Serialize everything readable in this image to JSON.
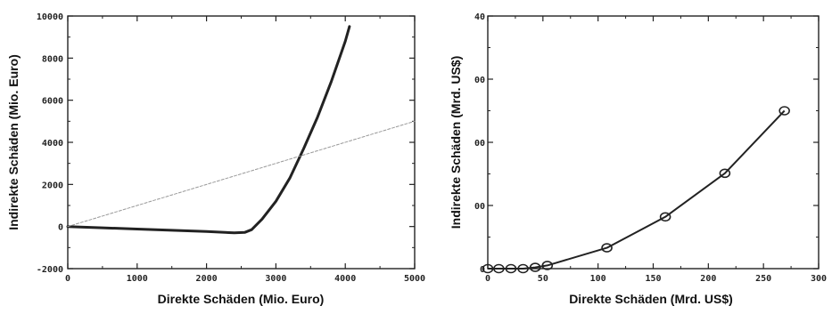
{
  "chart_data": [
    {
      "type": "line",
      "xlabel": "Direkte Schäden (Mio. Euro)",
      "ylabel": "Indirekte Schäden (Mio. Euro)",
      "xlim": [
        0,
        5000
      ],
      "ylim": [
        -2000,
        10000
      ],
      "xticks": [
        "0",
        "1000",
        "2000",
        "3000",
        "4000",
        "5000"
      ],
      "yticks": [
        "-2000",
        "0",
        "2000",
        "4000",
        "6000",
        "8000",
        "10000"
      ],
      "series": [
        {
          "style": "solid-thick",
          "color": "#222222",
          "x": [
            0,
            500,
            1000,
            1500,
            2000,
            2400,
            2550,
            2650,
            2800,
            3000,
            3200,
            3400,
            3600,
            3800,
            4000,
            4060
          ],
          "y": [
            0,
            -60,
            -120,
            -180,
            -240,
            -300,
            -280,
            -150,
            350,
            1200,
            2300,
            3700,
            5200,
            6900,
            8800,
            9500
          ]
        },
        {
          "style": "dashed-thin",
          "color": "#999999",
          "x": [
            0,
            5000
          ],
          "y": [
            0,
            5000
          ]
        }
      ]
    },
    {
      "type": "line",
      "markers": "circle",
      "xlabel": "Direkte Schäden (Mrd. US$)",
      "ylabel": "Indirekte Schäden (Mrd. US$)",
      "xlim": [
        0,
        300
      ],
      "ylim": [
        0,
        400
      ],
      "xticks": [
        "0",
        "50",
        "100",
        "150",
        "200",
        "250",
        "300"
      ],
      "yticks": [
        "0",
        "00",
        "00",
        "00",
        "40"
      ],
      "series": [
        {
          "color": "#222222",
          "x": [
            0,
            10,
            21,
            32,
            43,
            54,
            108,
            161,
            215,
            269
          ],
          "y": [
            0,
            0,
            0,
            0,
            2,
            5,
            33,
            82,
            151,
            250
          ]
        }
      ]
    }
  ]
}
